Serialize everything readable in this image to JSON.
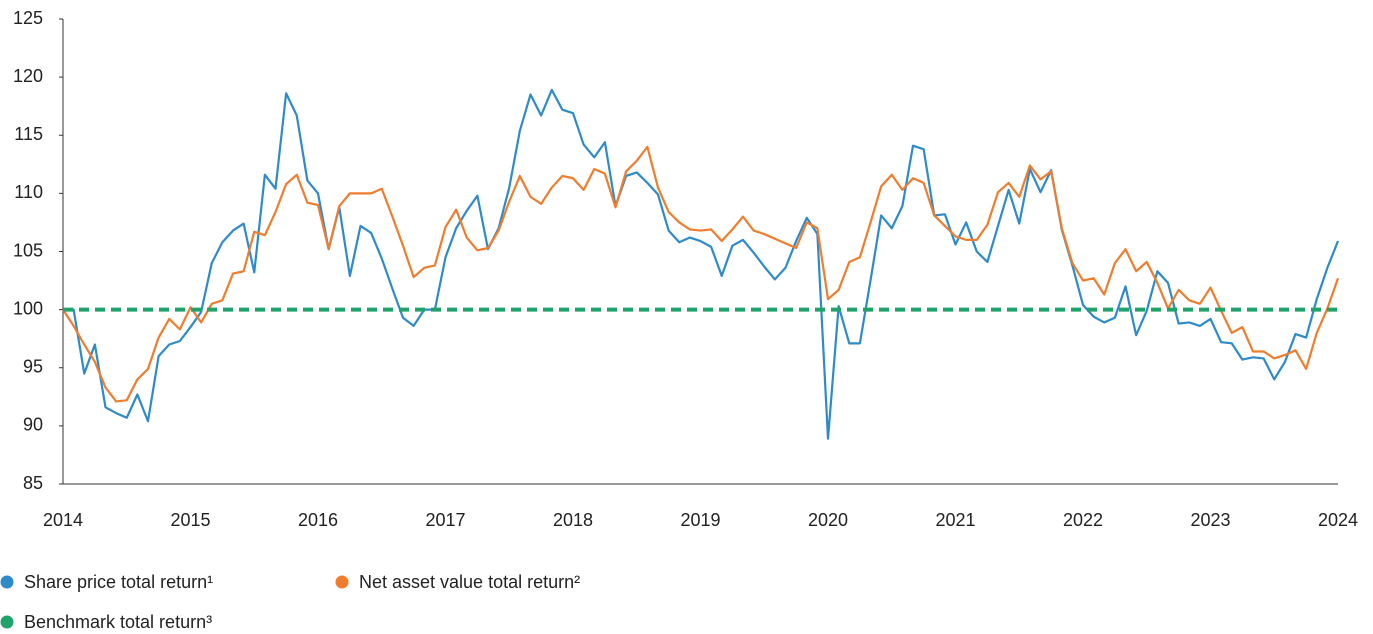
{
  "chart_data": {
    "type": "line",
    "categories": [
      "2014",
      null,
      null,
      null,
      null,
      null,
      null,
      null,
      null,
      null,
      null,
      null,
      "2015",
      null,
      null,
      null,
      null,
      null,
      null,
      null,
      null,
      null,
      null,
      null,
      "2016",
      null,
      null,
      null,
      null,
      null,
      null,
      null,
      null,
      null,
      null,
      null,
      "2017",
      null,
      null,
      null,
      null,
      null,
      null,
      null,
      null,
      null,
      null,
      null,
      "2018",
      null,
      null,
      null,
      null,
      null,
      null,
      null,
      null,
      null,
      null,
      null,
      "2019",
      null,
      null,
      null,
      null,
      null,
      null,
      null,
      null,
      null,
      null,
      null,
      "2020",
      null,
      null,
      null,
      null,
      null,
      null,
      null,
      null,
      null,
      null,
      null,
      "2021",
      null,
      null,
      null,
      null,
      null,
      null,
      null,
      null,
      null,
      null,
      null,
      "2022",
      null,
      null,
      null,
      null,
      null,
      null,
      null,
      null,
      null,
      null,
      null,
      "2023",
      null,
      null,
      null,
      null,
      null,
      null,
      null,
      null,
      null,
      null,
      null,
      "2024"
    ],
    "series": [
      {
        "name": "Share price total return¹",
        "color": "#2e8bc9",
        "values": [
          100,
          100,
          94.5,
          97,
          91.6,
          91.1,
          90.7,
          92.7,
          90.4,
          96,
          97,
          97.3,
          98.5,
          99.8,
          104,
          105.8,
          106.8,
          107.4,
          103.2,
          111.6,
          110.4,
          118.6,
          116.7,
          111.1,
          110,
          105.2,
          108.8,
          102.9,
          107.2,
          106.6,
          104.4,
          101.8,
          99.3,
          98.6,
          100,
          100,
          104.5,
          107,
          108.5,
          109.8,
          105.2,
          107,
          110.5,
          115.4,
          118.5,
          116.7,
          118.9,
          117.2,
          116.9,
          114.2,
          113.1,
          114.4,
          108.9,
          111.5,
          111.8,
          110.9,
          109.9,
          106.8,
          105.8,
          106.2,
          105.9,
          105.4,
          102.9,
          105.5,
          106,
          104.9,
          103.7,
          102.6,
          103.6,
          105.9,
          107.9,
          106.5,
          88.9,
          100.3,
          97.1,
          97.1,
          102.5,
          108.1,
          107,
          108.9,
          114.1,
          113.8,
          108.1,
          108.2,
          105.6,
          107.5,
          105,
          104.1,
          107.2,
          110.3,
          107.4,
          112.1,
          110.1,
          112,
          106.9,
          103.8,
          100.4,
          99.4,
          98.9,
          99.3,
          102,
          97.8,
          99.9,
          103.3,
          102.3,
          98.8,
          98.9,
          98.6,
          99.2,
          97.2,
          97.1,
          95.7,
          95.9,
          95.8,
          94,
          95.5,
          97.9,
          97.6,
          100.9,
          103.6,
          105.9
        ]
      },
      {
        "name": "Net asset value total return²",
        "color": "#ef7d2d",
        "values": [
          100,
          98.6,
          97,
          95.5,
          93.3,
          92.1,
          92.2,
          94,
          94.9,
          97.6,
          99.2,
          98.3,
          100.2,
          98.9,
          100.5,
          100.8,
          103.1,
          103.3,
          106.7,
          106.4,
          108.4,
          110.8,
          111.6,
          109.2,
          109,
          105.2,
          108.9,
          110,
          110,
          110,
          110.4,
          108,
          105.5,
          102.8,
          103.6,
          103.8,
          107.1,
          108.6,
          106.2,
          105.1,
          105.3,
          106.8,
          109.3,
          111.5,
          109.7,
          109.1,
          110.5,
          111.5,
          111.3,
          110.3,
          112.1,
          111.7,
          108.8,
          111.9,
          112.8,
          114,
          110.5,
          108.4,
          107.5,
          106.9,
          106.8,
          106.9,
          105.9,
          106.9,
          108,
          106.8,
          106.5,
          106.1,
          105.7,
          105.3,
          107.5,
          107,
          100.9,
          101.7,
          104.1,
          104.5,
          107.5,
          110.6,
          111.6,
          110.3,
          111.3,
          110.9,
          108.1,
          107.2,
          106.3,
          106,
          106,
          107.3,
          110.1,
          110.9,
          109.7,
          112.4,
          111.2,
          111.9,
          107,
          104,
          102.5,
          102.7,
          101.3,
          104,
          105.2,
          103.3,
          104.1,
          102.3,
          100.1,
          101.7,
          100.8,
          100.5,
          101.9,
          99.9,
          98,
          98.5,
          96.4,
          96.4,
          95.8,
          96.1,
          96.5,
          94.9,
          98,
          100.1,
          102.7
        ]
      },
      {
        "name": "Benchmark total return³",
        "color": "#1fa36a",
        "dashed": true,
        "values": [
          100,
          100,
          100,
          100,
          100,
          100,
          100,
          100,
          100,
          100,
          100,
          100,
          100,
          100,
          100,
          100,
          100,
          100,
          100,
          100,
          100,
          100,
          100,
          100,
          100,
          100,
          100,
          100,
          100,
          100,
          100,
          100,
          100,
          100,
          100,
          100,
          100,
          100,
          100,
          100,
          100,
          100,
          100,
          100,
          100,
          100,
          100,
          100,
          100,
          100,
          100,
          100,
          100,
          100,
          100,
          100,
          100,
          100,
          100,
          100,
          100,
          100,
          100,
          100,
          100,
          100,
          100,
          100,
          100,
          100,
          100,
          100,
          100,
          100,
          100,
          100,
          100,
          100,
          100,
          100,
          100,
          100,
          100,
          100,
          100,
          100,
          100,
          100,
          100,
          100,
          100,
          100,
          100,
          100,
          100,
          100,
          100,
          100,
          100,
          100,
          100,
          100,
          100,
          100,
          100,
          100,
          100,
          100,
          100,
          100,
          100,
          100,
          100,
          100,
          100,
          100,
          100,
          100,
          100,
          100,
          100
        ]
      }
    ],
    "ylim": [
      85,
      125
    ],
    "yticks": [
      85,
      90,
      95,
      100,
      105,
      110,
      115,
      120,
      125
    ],
    "grid": false,
    "legend": "bottom"
  }
}
